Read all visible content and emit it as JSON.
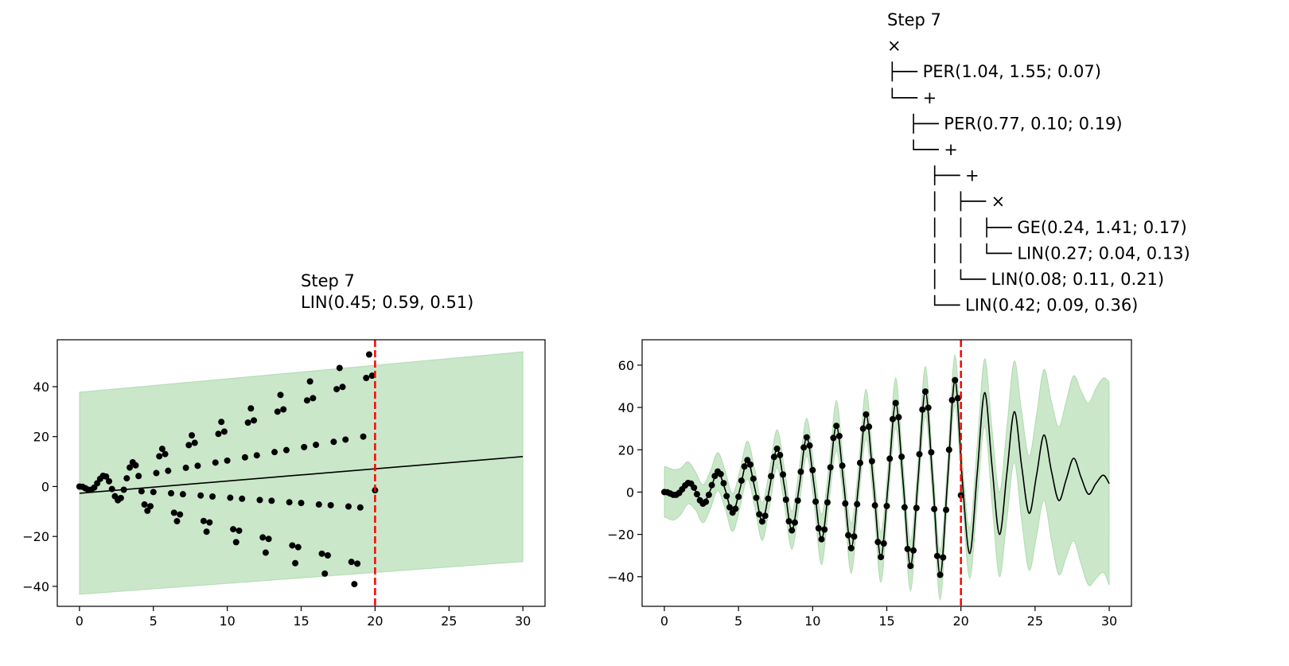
{
  "chart_data": [
    {
      "type": "line",
      "title": [
        "Step 7",
        "LIN(0.45; 0.59, 0.51)"
      ],
      "xlim": [
        -1.5,
        31.5
      ],
      "ylim": [
        -48,
        58.8
      ],
      "xticks": [
        0,
        5,
        10,
        15,
        20,
        25,
        30
      ],
      "yticks": [
        {
          "value": -40,
          "label": "−40"
        },
        {
          "value": -20,
          "label": "−20"
        },
        0,
        20,
        40
      ],
      "band": {
        "color": "#2ca02c",
        "x": [
          0,
          30
        ],
        "lower": [
          -43.2,
          -30.1
        ],
        "upper": [
          37.8,
          54
        ]
      },
      "line": {
        "color": "#000000",
        "x": [
          0,
          30
        ],
        "values": [
          -2.7,
          12
        ]
      },
      "scatter": {
        "color": "#000000",
        "x": [
          0,
          0.2,
          0.4,
          0.6,
          0.8,
          1,
          1.2,
          1.4,
          1.6,
          1.8,
          2,
          2.2,
          2.4,
          2.6,
          2.8,
          3,
          3.2,
          3.4,
          3.6,
          3.8,
          4,
          4.2,
          4.4,
          4.6,
          4.8,
          5,
          5.2,
          5.4,
          5.6,
          5.8,
          6,
          6.2,
          6.4,
          6.6,
          6.8,
          7,
          7.2,
          7.4,
          7.6,
          7.8,
          8,
          8.2,
          8.4,
          8.6,
          8.8,
          9,
          9.2,
          9.4,
          9.6,
          9.8,
          10,
          10.2,
          10.4,
          10.6,
          10.8,
          11,
          11.2,
          11.4,
          11.6,
          11.8,
          12,
          12.2,
          12.4,
          12.6,
          12.8,
          13,
          13.2,
          13.4,
          13.6,
          13.8,
          14,
          14.2,
          14.4,
          14.6,
          14.8,
          15,
          15.2,
          15.4,
          15.6,
          15.8,
          16,
          16.2,
          16.4,
          16.6,
          16.8,
          17,
          17.2,
          17.4,
          17.6,
          17.8,
          18,
          18.2,
          18.4,
          18.6,
          18.8,
          19,
          19.2,
          19.4,
          19.6,
          19.8,
          20
        ],
        "values": [
          0,
          -0.1,
          -0.7,
          -1.3,
          -1.3,
          -0.4,
          1.3,
          3.1,
          4.3,
          4.0,
          2.1,
          -1.0,
          -3.9,
          -5.5,
          -4.6,
          -1.3,
          3.3,
          7.6,
          9.7,
          8.5,
          4.2,
          -1.9,
          -7.2,
          -9.7,
          -7.9,
          -2.2,
          5.4,
          12.1,
          15.1,
          13.0,
          6.3,
          -2.7,
          -10.5,
          -13.9,
          -11.2,
          -3.1,
          7.5,
          16.6,
          20.5,
          17.5,
          8.3,
          -3.6,
          -13.8,
          -18.1,
          -14.4,
          -4.0,
          9.6,
          21.1,
          25.9,
          22.0,
          10.4,
          -4.5,
          -17.1,
          -22.3,
          -17.7,
          -4.9,
          11.7,
          25.6,
          31.3,
          26.5,
          12.5,
          -5.4,
          -20.4,
          -26.5,
          -21.0,
          -5.7,
          13.8,
          30.0,
          36.7,
          30.9,
          14.6,
          -6.3,
          -23.6,
          -30.7,
          -24.3,
          -6.6,
          15.8,
          34.5,
          42.1,
          35.4,
          16.7,
          -7.2,
          -26.9,
          -34.9,
          -27.6,
          -7.5,
          17.9,
          39.0,
          47.5,
          39.9,
          18.8,
          -8.0,
          -30.2,
          -39.1,
          -30.9,
          -8.4,
          20.0,
          43.5,
          52.9,
          44.4,
          -1.5
        ]
      },
      "vline": {
        "x": 20,
        "color": "#ff0000",
        "style": "dashed"
      }
    },
    {
      "type": "line",
      "title": [
        "Step 7",
        "×",
        "├── PER(1.04, 1.55; 0.07)",
        "└── +",
        "    ├── PER(0.77, 0.10; 0.19)",
        "    └── +",
        "        ├── +",
        "        │   ├── ×",
        "        │   │   ├── GE(0.24, 1.41; 0.17)",
        "        │   │   └── LIN(0.27; 0.04, 0.13)",
        "        │   └── LIN(0.08; 0.11, 0.21)",
        "        └── LIN(0.42; 0.09, 0.36)"
      ],
      "xlim": [
        -1.5,
        31.5
      ],
      "ylim": [
        -54,
        72
      ],
      "xticks": [
        0,
        5,
        10,
        15,
        20,
        25,
        30
      ],
      "yticks": [
        {
          "value": -40,
          "label": "−40"
        },
        {
          "value": -20,
          "label": "−20"
        },
        0,
        20,
        40,
        60
      ],
      "band": {
        "color": "#2ca02c",
        "x": [
          0,
          0.1,
          0.6,
          1.1,
          1.6,
          2.1,
          2.6,
          3.1,
          3.6,
          4.1,
          4.6,
          5.1,
          5.6,
          6.1,
          6.6,
          7.1,
          7.6,
          8.1,
          8.6,
          9.1,
          9.6,
          10.1,
          10.6,
          11.1,
          11.6,
          12.1,
          12.6,
          13.1,
          13.6,
          14.1,
          14.6,
          15.1,
          15.6,
          16.1,
          16.6,
          17.1,
          17.6,
          18.1,
          18.6,
          19.1,
          19.6,
          20.1,
          20.6,
          21.1,
          21.6,
          22.1,
          22.6,
          23.1,
          23.6,
          24.1,
          24.6,
          25.1,
          25.6,
          26.1,
          26.6,
          27.1,
          27.6,
          28.1,
          28.6,
          29.1,
          29.6,
          30
        ],
        "lower": [
          -12,
          -12,
          -13.3,
          -10.7,
          -5.7,
          -8.4,
          -14.5,
          -8.1,
          0.7,
          -7.8,
          -18.7,
          -7.5,
          6.1,
          -7.2,
          -22.9,
          -6.9,
          11.5,
          -6.6,
          -27.1,
          -6.3,
          16.9,
          -6.0,
          -34.3,
          -5.7,
          19.3,
          -5.4,
          -38.5,
          -5.1,
          24.7,
          -4.8,
          -42.7,
          -4.5,
          30.1,
          -4.2,
          -46.9,
          -3.9,
          35.5,
          -3.6,
          -51.1,
          -3.3,
          40.9,
          -5,
          -41,
          -5,
          31,
          -6,
          -40,
          -13,
          14,
          -14,
          -37,
          -21,
          -4,
          -23,
          -39,
          -31,
          -23,
          -34,
          -44,
          -41,
          -38,
          -44
        ],
        "upper": [
          12,
          12,
          10.7,
          11.3,
          14.3,
          9.6,
          3.5,
          9.9,
          18.7,
          10.2,
          -0.7,
          10.5,
          24.1,
          10.8,
          -4.9,
          11.1,
          29.5,
          11.4,
          -9.1,
          11.7,
          34.9,
          12.0,
          -10.3,
          12.3,
          43.3,
          12.6,
          -14.5,
          12.9,
          48.7,
          13.2,
          -18.7,
          13.5,
          54.1,
          13.8,
          -22.9,
          14.1,
          59.5,
          14.4,
          -27.1,
          14.7,
          64.9,
          15,
          -17,
          23,
          63,
          30,
          0,
          31,
          62,
          38,
          17,
          37,
          58,
          43,
          31,
          43,
          55,
          48,
          42,
          49,
          54,
          52
        ]
      },
      "line": {
        "color": "#000000",
        "x": [
          0,
          0.1,
          0.6,
          1.1,
          1.6,
          2.1,
          2.6,
          3.1,
          3.6,
          4.1,
          4.6,
          5.1,
          5.6,
          6.1,
          6.6,
          7.1,
          7.6,
          8.1,
          8.6,
          9.1,
          9.6,
          10.1,
          10.6,
          11.1,
          11.6,
          12.1,
          12.6,
          13.1,
          13.6,
          14.1,
          14.6,
          15.1,
          15.6,
          16.1,
          16.6,
          17.1,
          17.6,
          18.1,
          18.6,
          19.1,
          19.6,
          20.1,
          20.6,
          21.1,
          21.6,
          22.1,
          22.6,
          23.1,
          23.6,
          24.1,
          24.6,
          25.1,
          25.6,
          26.1,
          26.6,
          27.1,
          27.6,
          28.1,
          28.6,
          29.1,
          29.6,
          30
        ],
        "values": [
          0,
          0.0,
          -1.3,
          0.3,
          4.3,
          0.6,
          -5.5,
          0.9,
          9.7,
          1.2,
          -9.7,
          1.5,
          15.1,
          1.8,
          -13.9,
          2.1,
          20.5,
          2.4,
          -18.1,
          2.7,
          25.9,
          3.0,
          -22.3,
          3.3,
          31.3,
          3.6,
          -26.5,
          3.9,
          36.7,
          4.2,
          -30.7,
          4.5,
          42.1,
          4.8,
          -34.9,
          5.1,
          47.5,
          5.4,
          -39.1,
          5.7,
          52.9,
          5,
          -29,
          9,
          47,
          12,
          -20,
          9,
          38,
          12,
          -10,
          8,
          27,
          10,
          -4,
          6,
          16,
          7,
          -1,
          4,
          8,
          4
        ]
      },
      "scatter": {
        "color": "#000000",
        "x": [
          0,
          0.2,
          0.4,
          0.6,
          0.8,
          1,
          1.2,
          1.4,
          1.6,
          1.8,
          2,
          2.2,
          2.4,
          2.6,
          2.8,
          3,
          3.2,
          3.4,
          3.6,
          3.8,
          4,
          4.2,
          4.4,
          4.6,
          4.8,
          5,
          5.2,
          5.4,
          5.6,
          5.8,
          6,
          6.2,
          6.4,
          6.6,
          6.8,
          7,
          7.2,
          7.4,
          7.6,
          7.8,
          8,
          8.2,
          8.4,
          8.6,
          8.8,
          9,
          9.2,
          9.4,
          9.6,
          9.8,
          10,
          10.2,
          10.4,
          10.6,
          10.8,
          11,
          11.2,
          11.4,
          11.6,
          11.8,
          12,
          12.2,
          12.4,
          12.6,
          12.8,
          13,
          13.2,
          13.4,
          13.6,
          13.8,
          14,
          14.2,
          14.4,
          14.6,
          14.8,
          15,
          15.2,
          15.4,
          15.6,
          15.8,
          16,
          16.2,
          16.4,
          16.6,
          16.8,
          17,
          17.2,
          17.4,
          17.6,
          17.8,
          18,
          18.2,
          18.4,
          18.6,
          18.8,
          19,
          19.2,
          19.4,
          19.6,
          19.8,
          20
        ],
        "values": [
          0,
          -0.1,
          -0.7,
          -1.3,
          -1.3,
          -0.4,
          1.3,
          3.1,
          4.3,
          4.0,
          2.1,
          -1.0,
          -3.9,
          -5.5,
          -4.6,
          -1.3,
          3.3,
          7.6,
          9.7,
          8.5,
          4.2,
          -1.9,
          -7.2,
          -9.7,
          -7.9,
          -2.2,
          5.4,
          12.1,
          15.1,
          13.0,
          6.3,
          -2.7,
          -10.5,
          -13.9,
          -11.2,
          -3.1,
          7.5,
          16.6,
          20.5,
          17.5,
          8.3,
          -3.6,
          -13.8,
          -18.1,
          -14.4,
          -4.0,
          9.6,
          21.1,
          25.9,
          22.0,
          10.4,
          -4.5,
          -17.1,
          -22.3,
          -17.7,
          -4.9,
          11.7,
          25.6,
          31.3,
          26.5,
          12.5,
          -5.4,
          -20.4,
          -26.5,
          -21.0,
          -5.7,
          13.8,
          30.0,
          36.7,
          30.9,
          14.6,
          -6.3,
          -23.6,
          -30.7,
          -24.3,
          -6.6,
          15.8,
          34.5,
          42.1,
          35.4,
          16.7,
          -7.2,
          -26.9,
          -34.9,
          -27.6,
          -7.5,
          17.9,
          39.0,
          47.5,
          39.9,
          18.8,
          -8.0,
          -30.2,
          -39.1,
          -30.9,
          -8.4,
          20.0,
          43.5,
          52.9,
          44.4,
          -1.5
        ]
      },
      "vline": {
        "x": 20,
        "color": "#ff0000",
        "style": "dashed"
      }
    }
  ]
}
